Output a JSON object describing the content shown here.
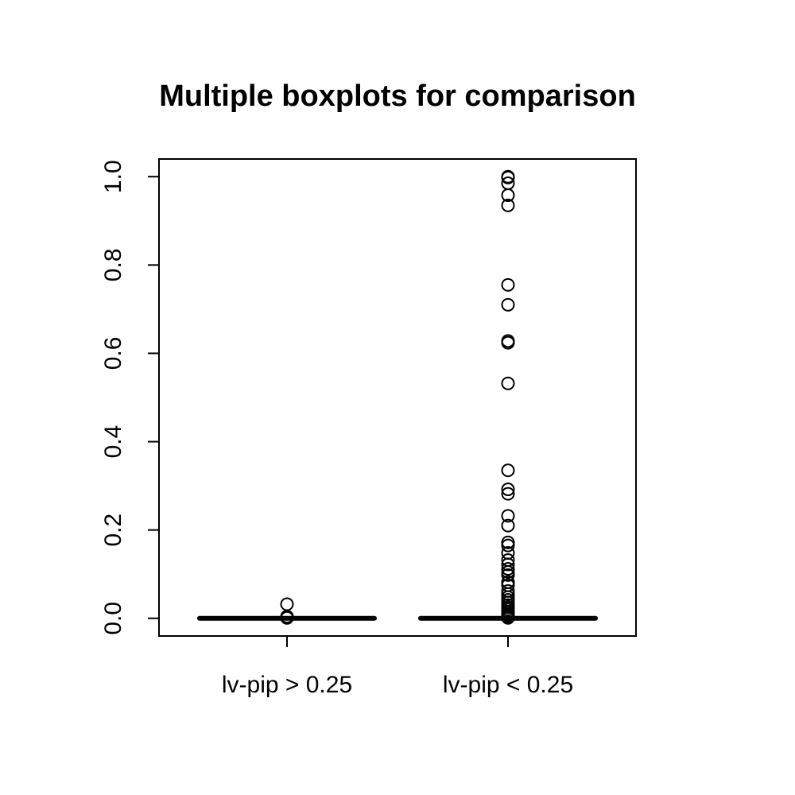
{
  "chart_data": {
    "type": "boxplot",
    "title": "Multiple boxplots for comparison",
    "xlabel": "",
    "ylabel": "",
    "ylim": [
      -0.04,
      1.04
    ],
    "y_ticks": [
      0.0,
      0.2,
      0.4,
      0.6,
      0.8,
      1.0
    ],
    "y_tick_labels": [
      "0.0",
      "0.2",
      "0.4",
      "0.6",
      "0.8",
      "1.0"
    ],
    "categories": [
      "lv-pip > 0.25",
      "lv-pip < 0.25"
    ],
    "boxes": [
      {
        "category": "lv-pip > 0.25",
        "min": 0.0,
        "q1": 0.0,
        "median": 0.0,
        "q3": 0.0,
        "max": 0.0,
        "outliers": [
          0.032,
          0.004,
          0.002,
          0.001
        ]
      },
      {
        "category": "lv-pip < 0.25",
        "min": 0.0,
        "q1": 0.0,
        "median": 0.0,
        "q3": 0.0,
        "max": 0.0,
        "outliers": [
          1.0,
          0.998,
          0.985,
          0.958,
          0.935,
          0.755,
          0.71,
          0.628,
          0.624,
          0.532,
          0.335,
          0.292,
          0.282,
          0.232,
          0.21,
          0.172,
          0.165,
          0.148,
          0.132,
          0.122,
          0.112,
          0.105,
          0.098,
          0.082,
          0.075,
          0.062,
          0.055,
          0.048,
          0.042,
          0.036,
          0.03,
          0.025,
          0.02,
          0.015,
          0.011,
          0.008,
          0.005,
          0.003,
          0.001
        ]
      }
    ],
    "grid": false,
    "legend": "none"
  }
}
